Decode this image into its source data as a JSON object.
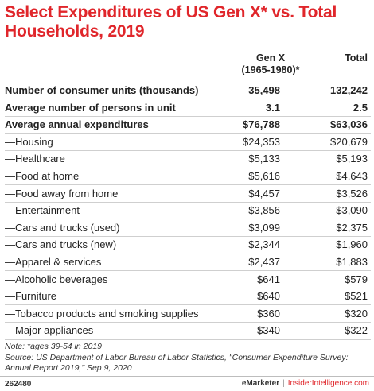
{
  "chart_data": {
    "type": "table",
    "title": "Select Expenditures of US Gen X* vs. Total Households, 2019",
    "columns": [
      "",
      "Gen X (1965-1980)*",
      "Total"
    ],
    "rows": [
      {
        "label": "Number of consumer units (thousands)",
        "gen_x": "35,498",
        "total": "132,242",
        "bold": true
      },
      {
        "label": "Average number of persons in unit",
        "gen_x": "3.1",
        "total": "2.5",
        "bold": true
      },
      {
        "label": "Average annual expenditures",
        "gen_x": "$76,788",
        "total": "$63,036",
        "bold": true
      },
      {
        "label": "—Housing",
        "gen_x": "$24,353",
        "total": "$20,679",
        "bold": false
      },
      {
        "label": "—Healthcare",
        "gen_x": "$5,133",
        "total": "$5,193",
        "bold": false
      },
      {
        "label": "—Food at home",
        "gen_x": "$5,616",
        "total": "$4,643",
        "bold": false
      },
      {
        "label": "—Food away from home",
        "gen_x": "$4,457",
        "total": "$3,526",
        "bold": false
      },
      {
        "label": "—Entertainment",
        "gen_x": "$3,856",
        "total": "$3,090",
        "bold": false
      },
      {
        "label": "—Cars and trucks (used)",
        "gen_x": "$3,099",
        "total": "$2,375",
        "bold": false
      },
      {
        "label": "—Cars and trucks (new)",
        "gen_x": "$2,344",
        "total": "$1,960",
        "bold": false
      },
      {
        "label": "—Apparel & services",
        "gen_x": "$2,437",
        "total": "$1,883",
        "bold": false
      },
      {
        "label": "—Alcoholic beverages",
        "gen_x": "$641",
        "total": "$579",
        "bold": false
      },
      {
        "label": "—Furniture",
        "gen_x": "$640",
        "total": "$521",
        "bold": false
      },
      {
        "label": "—Tobacco products and smoking supplies",
        "gen_x": "$360",
        "total": "$320",
        "bold": false
      },
      {
        "label": "—Major appliances",
        "gen_x": "$340",
        "total": "$322",
        "bold": false
      }
    ]
  },
  "header": {
    "title": "Select Expenditures of US Gen X* vs. Total Households, 2019",
    "col_genx_line1": "Gen X",
    "col_genx_line2": "(1965-1980)*",
    "col_total": "Total"
  },
  "notes": {
    "line1": "Note: *ages 39-54 in 2019",
    "line2": "Source: US Department of Labor Bureau of Labor Statistics, \"Consumer Expenditure Survey: Annual Report 2019,\" Sep 9, 2020"
  },
  "footer": {
    "id": "262480",
    "brand1": "eMarketer",
    "separator": "|",
    "brand2": "InsiderIntelligence.com"
  },
  "colors": {
    "title": "#e0262b",
    "rule": "#cfcfcf"
  }
}
